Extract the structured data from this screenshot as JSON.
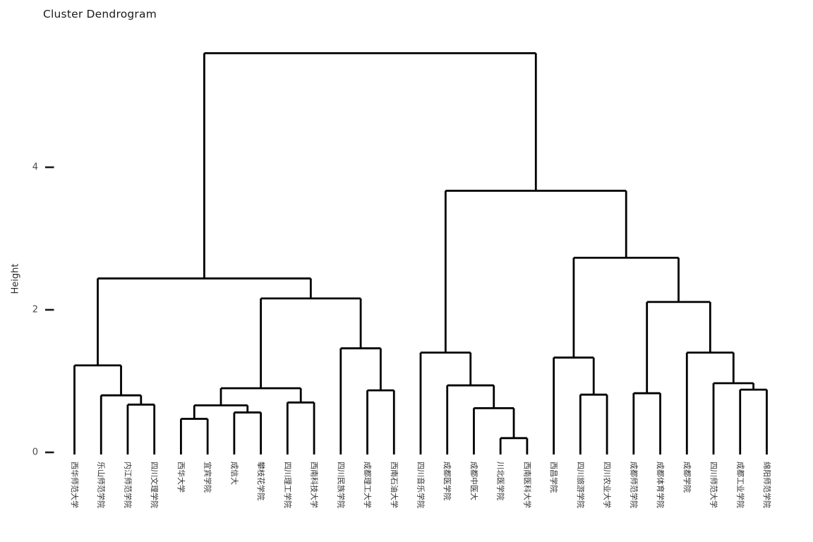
{
  "title": "Cluster Dendrogram",
  "axis": {
    "y_label": "Height",
    "y_ticks": [
      0,
      2,
      4
    ]
  },
  "colors": {
    "line": "#000000",
    "tick_label": "#4d4d4d",
    "title": "#1a1a1a",
    "background": "#ffffff"
  },
  "chart_data": {
    "type": "dendrogram",
    "title": "Cluster Dendrogram",
    "ylabel": "Height",
    "xlabel": "",
    "y_ticks": [
      0,
      2,
      4
    ],
    "ylim": [
      0,
      5.6
    ],
    "grid": false,
    "legend": false,
    "leaves": [
      "西华师范大学",
      "乐山师范学院",
      "内江师范学院",
      "四川文理学院",
      "西华大学",
      "宜宾学院",
      "成信大",
      "攀枝花学院",
      "四川理工学院",
      "西南科技大学",
      "四川民族学院",
      "成都理工大学",
      "西南石油大学",
      "四川音乐学院",
      "成都医学院",
      "成都中医大",
      "川北医学院",
      "西南医科大学",
      "西昌学院",
      "四川旅游学院",
      "四川农业大学",
      "成都师范学院",
      "成都体育学院",
      "成都学院",
      "四川师范大学",
      "成都工业学院",
      "绵阳师范学院"
    ],
    "tree": {
      "height": 5.6,
      "children": [
        {
          "height": 2.44,
          "children": [
            {
              "height": 1.22,
              "children": [
                {
                  "label": "西华师范大学"
                },
                {
                  "height": 0.8,
                  "children": [
                    {
                      "label": "乐山师范学院"
                    },
                    {
                      "height": 0.67,
                      "children": [
                        {
                          "label": "内江师范学院"
                        },
                        {
                          "label": "四川文理学院"
                        }
                      ]
                    }
                  ]
                }
              ]
            },
            {
              "height": 2.16,
              "children": [
                {
                  "height": 0.9,
                  "children": [
                    {
                      "height": 0.66,
                      "children": [
                        {
                          "height": 0.47,
                          "children": [
                            {
                              "label": "西华大学"
                            },
                            {
                              "label": "宜宾学院"
                            }
                          ]
                        },
                        {
                          "height": 0.56,
                          "children": [
                            {
                              "label": "成信大"
                            },
                            {
                              "label": "攀枝花学院"
                            }
                          ]
                        }
                      ]
                    },
                    {
                      "height": 0.7,
                      "children": [
                        {
                          "label": "四川理工学院"
                        },
                        {
                          "label": "西南科技大学"
                        }
                      ]
                    }
                  ]
                },
                {
                  "height": 1.46,
                  "children": [
                    {
                      "label": "四川民族学院"
                    },
                    {
                      "height": 0.87,
                      "children": [
                        {
                          "label": "成都理工大学"
                        },
                        {
                          "label": "西南石油大学"
                        }
                      ]
                    }
                  ]
                }
              ]
            }
          ]
        },
        {
          "height": 3.67,
          "children": [
            {
              "height": 1.4,
              "children": [
                {
                  "label": "四川音乐学院"
                },
                {
                  "height": 0.94,
                  "children": [
                    {
                      "label": "成都医学院"
                    },
                    {
                      "height": 0.62,
                      "children": [
                        {
                          "label": "成都中医大"
                        },
                        {
                          "height": 0.2,
                          "children": [
                            {
                              "label": "川北医学院"
                            },
                            {
                              "label": "西南医科大学"
                            }
                          ]
                        }
                      ]
                    }
                  ]
                }
              ]
            },
            {
              "height": 2.73,
              "children": [
                {
                  "height": 1.33,
                  "children": [
                    {
                      "label": "西昌学院"
                    },
                    {
                      "height": 0.81,
                      "children": [
                        {
                          "label": "四川旅游学院"
                        },
                        {
                          "label": "四川农业大学"
                        }
                      ]
                    }
                  ]
                },
                {
                  "height": 2.11,
                  "children": [
                    {
                      "height": 0.83,
                      "children": [
                        {
                          "label": "成都师范学院"
                        },
                        {
                          "label": "成都体育学院"
                        }
                      ]
                    },
                    {
                      "height": 1.4,
                      "children": [
                        {
                          "label": "成都学院"
                        },
                        {
                          "height": 0.97,
                          "children": [
                            {
                              "label": "四川师范大学"
                            },
                            {
                              "height": 0.88,
                              "children": [
                                {
                                  "label": "成都工业学院"
                                },
                                {
                                  "label": "绵阳师范学院"
                                }
                              ]
                            }
                          ]
                        }
                      ]
                    }
                  ]
                }
              ]
            }
          ]
        }
      ]
    }
  }
}
